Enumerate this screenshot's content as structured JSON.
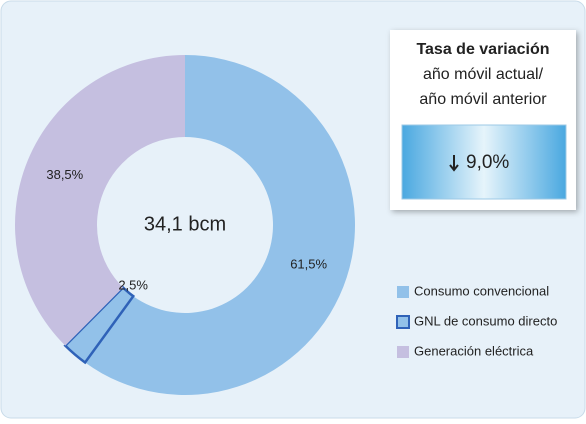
{
  "chart_data": {
    "type": "donut",
    "center_label": "34,1 bcm",
    "categories": [
      "Consumo convencional",
      "GNL de consumo directo",
      "Generación eléctrica"
    ],
    "values": [
      61.5,
      2.5,
      38.5
    ],
    "value_labels": [
      "61,5%",
      "2,5%",
      "38,5%"
    ],
    "colors": [
      "#92c1e9",
      "#92c1e9",
      "#c5bfe0"
    ],
    "legend": "right",
    "annotation": {
      "title": "Tasa de variación",
      "lines": [
        "año móvil actual/",
        "año móvil anterior"
      ],
      "value_label": "9,0%"
    }
  }
}
